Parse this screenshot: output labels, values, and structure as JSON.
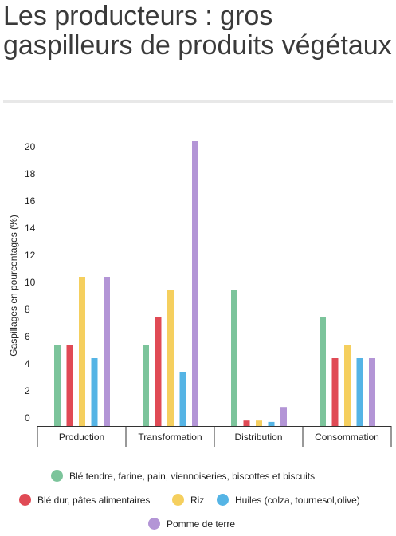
{
  "title": "Les producteurs : gros gaspilleurs de produits végétaux",
  "chart_data": {
    "type": "bar",
    "categories": [
      "Production",
      "Transformation",
      "Distribution",
      "Consommation"
    ],
    "ylabel": "Gaspillages en pourcentages (%)",
    "ylim": [
      0,
      21
    ],
    "yticks": [
      0,
      2,
      4,
      6,
      8,
      10,
      12,
      14,
      16,
      18,
      20
    ],
    "grid": false,
    "legend_position": "bottom",
    "series": [
      {
        "name": "Blé tendre, farine, pain, viennoiseries, biscottes et biscuits",
        "color": "#7cc49b",
        "values": [
          6,
          6,
          10,
          8
        ]
      },
      {
        "name": "Blé dur, pâtes alimentaires",
        "color": "#e04a55",
        "values": [
          6,
          8,
          0.4,
          5
        ]
      },
      {
        "name": "Riz",
        "color": "#f5cf5e",
        "values": [
          11,
          10,
          0.4,
          6
        ]
      },
      {
        "name": "Huiles (colza, tournesol,olive)",
        "color": "#55b4e5",
        "values": [
          5,
          4,
          0.3,
          5
        ]
      },
      {
        "name": "Pomme de terre",
        "color": "#b395d6",
        "values": [
          11,
          21,
          1.4,
          5
        ]
      }
    ]
  }
}
